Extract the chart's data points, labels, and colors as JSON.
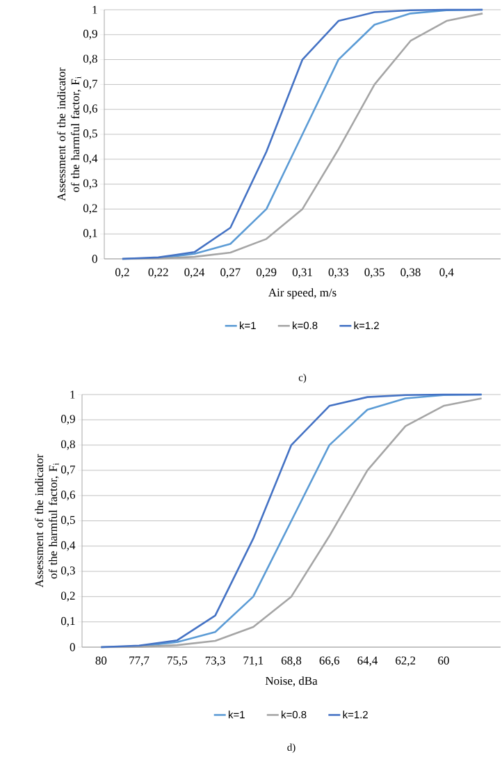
{
  "chart_data": [
    {
      "type": "line",
      "xlabel": "Air speed, m/s",
      "ylabel": "Assessment of the indicator of the harmful factor, F$_{i}$",
      "categories": [
        "0,2",
        "0,22",
        "0,24",
        "0,27",
        "0,29",
        "0,31",
        "0,33",
        "0,35",
        "0,38",
        "0,4",
        null
      ],
      "series": [
        {
          "name": "k=1",
          "color": "#5b9bd5",
          "values": [
            0,
            0.003,
            0.02,
            0.06,
            0.2,
            0.5,
            0.8,
            0.94,
            0.985,
            0.998,
            1.0
          ]
        },
        {
          "name": "k=0.8",
          "color": "#a5a5a5",
          "values": [
            0,
            0.001,
            0.008,
            0.025,
            0.08,
            0.2,
            0.44,
            0.7,
            0.875,
            0.955,
            0.985
          ]
        },
        {
          "name": "k=1.2",
          "color": "#4472c4",
          "values": [
            0,
            0.006,
            0.027,
            0.125,
            0.43,
            0.8,
            0.955,
            0.99,
            0.998,
            1.0,
            1.0
          ]
        }
      ],
      "ylim": [
        0,
        1
      ],
      "yticks": [
        0,
        {
          "value": 0.1,
          "label": "0,1"
        },
        {
          "value": 0.2,
          "label": "0,2"
        },
        {
          "value": 0.3,
          "label": "0,3"
        },
        {
          "value": 0.4,
          "label": "0,4"
        },
        {
          "value": 0.5,
          "label": "0,5"
        },
        {
          "value": 0.6,
          "label": "0,6"
        },
        {
          "value": 0.7,
          "label": "0,7"
        },
        {
          "value": 0.8,
          "label": "0,8"
        },
        {
          "value": 0.9,
          "label": "0,9"
        },
        1
      ],
      "grid": "y",
      "legend": "bottom",
      "annotations": [
        "c)"
      ]
    },
    {
      "type": "line",
      "xlabel": "Noise, dBa",
      "ylabel": "Assessment of the indicator of the harmful factor, F$_{i}$",
      "categories": [
        "80",
        "77,7",
        "75,5",
        "73,3",
        "71,1",
        "68,8",
        "66,6",
        "64,4",
        "62,2",
        "60",
        null
      ],
      "series": [
        {
          "name": "k=1",
          "color": "#5b9bd5",
          "values": [
            0,
            0.003,
            0.02,
            0.06,
            0.2,
            0.5,
            0.8,
            0.94,
            0.985,
            0.998,
            1.0
          ]
        },
        {
          "name": "k=0.8",
          "color": "#a5a5a5",
          "values": [
            0,
            0.001,
            0.008,
            0.025,
            0.08,
            0.2,
            0.44,
            0.7,
            0.875,
            0.955,
            0.985
          ]
        },
        {
          "name": "k=1.2",
          "color": "#4472c4",
          "values": [
            0,
            0.006,
            0.027,
            0.125,
            0.43,
            0.8,
            0.955,
            0.99,
            0.998,
            1.0,
            1.0
          ]
        }
      ],
      "ylim": [
        0,
        1
      ],
      "yticks": [
        0,
        {
          "value": 0.1,
          "label": "0,1"
        },
        {
          "value": 0.2,
          "label": "0,2"
        },
        {
          "value": 0.3,
          "label": "0,3"
        },
        {
          "value": 0.4,
          "label": "0,4"
        },
        {
          "value": 0.5,
          "label": "0,5"
        },
        {
          "value": 0.6,
          "label": "0,6"
        },
        {
          "value": 0.7,
          "label": "0,7"
        },
        {
          "value": 0.8,
          "label": "0,8"
        },
        {
          "value": 0.9,
          "label": "0,9"
        },
        1
      ],
      "grid": "y",
      "legend": "bottom",
      "annotations": [
        "d)"
      ]
    }
  ]
}
